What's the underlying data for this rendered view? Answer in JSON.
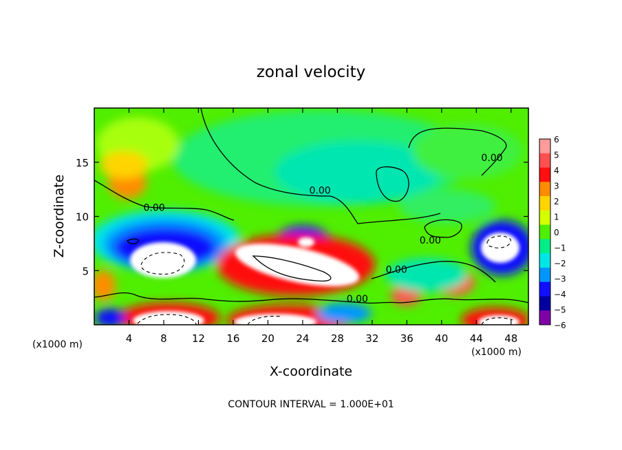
{
  "chart_data": {
    "type": "heatmap",
    "title": "zonal velocity",
    "xlabel": "X-coordinate",
    "ylabel": "Z-coordinate",
    "x_unit": "(x1000 m)",
    "y_unit": "(x1000 m)",
    "xlim": [
      0,
      50
    ],
    "ylim": [
      0,
      20
    ],
    "x_ticks": [
      "4",
      "8",
      "12",
      "16",
      "20",
      "24",
      "28",
      "32",
      "36",
      "40",
      "44",
      "48"
    ],
    "x_tick_values": [
      4,
      8,
      12,
      16,
      20,
      24,
      28,
      32,
      36,
      40,
      44,
      48
    ],
    "y_ticks": [
      "5",
      "10",
      "15"
    ],
    "y_tick_values": [
      5,
      10,
      15
    ],
    "colorbar": {
      "labels": [
        "6",
        "5",
        "4",
        "3",
        "2",
        "1",
        "0",
        "−1",
        "−2",
        "−3",
        "−4",
        "−5",
        "−6"
      ],
      "values": [
        6,
        5,
        4,
        3,
        2,
        1,
        0,
        -1,
        -2,
        -3,
        -4,
        -5,
        -6
      ],
      "colors": [
        "#ff9a9a",
        "#ff5050",
        "#ff1010",
        "#ff8c00",
        "#ffd400",
        "#d4ff00",
        "#50ee00",
        "#00ee88",
        "#00e6e6",
        "#0096ff",
        "#1010ff",
        "#0000a0",
        "#8000a8"
      ]
    },
    "contour_label": "0.00",
    "contour_label_positions": [
      [
        26,
        12.1
      ],
      [
        6.9,
        10.5
      ],
      [
        45.8,
        15.1
      ],
      [
        34.8,
        4.8
      ],
      [
        38.7,
        7.5
      ],
      [
        30.3,
        2.1
      ]
    ],
    "footer": "CONTOUR INTERVAL = 1.000E+01",
    "grid": false,
    "legend": "colorbar-right"
  }
}
